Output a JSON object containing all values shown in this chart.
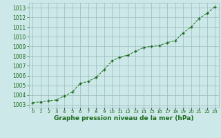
{
  "x": [
    0,
    1,
    2,
    3,
    4,
    5,
    6,
    7,
    8,
    9,
    10,
    11,
    12,
    13,
    14,
    15,
    16,
    17,
    18,
    19,
    20,
    21,
    22,
    23
  ],
  "y": [
    1003.2,
    1003.3,
    1003.4,
    1003.5,
    1003.9,
    1004.3,
    1005.2,
    1005.4,
    1005.8,
    1006.6,
    1007.5,
    1007.9,
    1008.1,
    1008.5,
    1008.9,
    1009.0,
    1009.1,
    1009.4,
    1009.6,
    1010.4,
    1011.0,
    1011.9,
    1012.4,
    1013.1
  ],
  "line_color": "#1a6b1a",
  "marker": "+",
  "marker_size": 3.5,
  "marker_linewidth": 1.0,
  "line_width": 0.7,
  "bg_color": "#cce8e8",
  "grid_color": "#99bbbb",
  "xlabel": "Graphe pression niveau de la mer (hPa)",
  "xlabel_fontsize": 6.5,
  "ylabel_ticks": [
    1003,
    1004,
    1005,
    1006,
    1007,
    1008,
    1009,
    1010,
    1011,
    1012,
    1013
  ],
  "xlim": [
    -0.5,
    23.5
  ],
  "ylim": [
    1002.7,
    1013.5
  ],
  "ytick_fontsize": 5.5,
  "xtick_fontsize": 5.0,
  "text_color": "#1a6b1a"
}
